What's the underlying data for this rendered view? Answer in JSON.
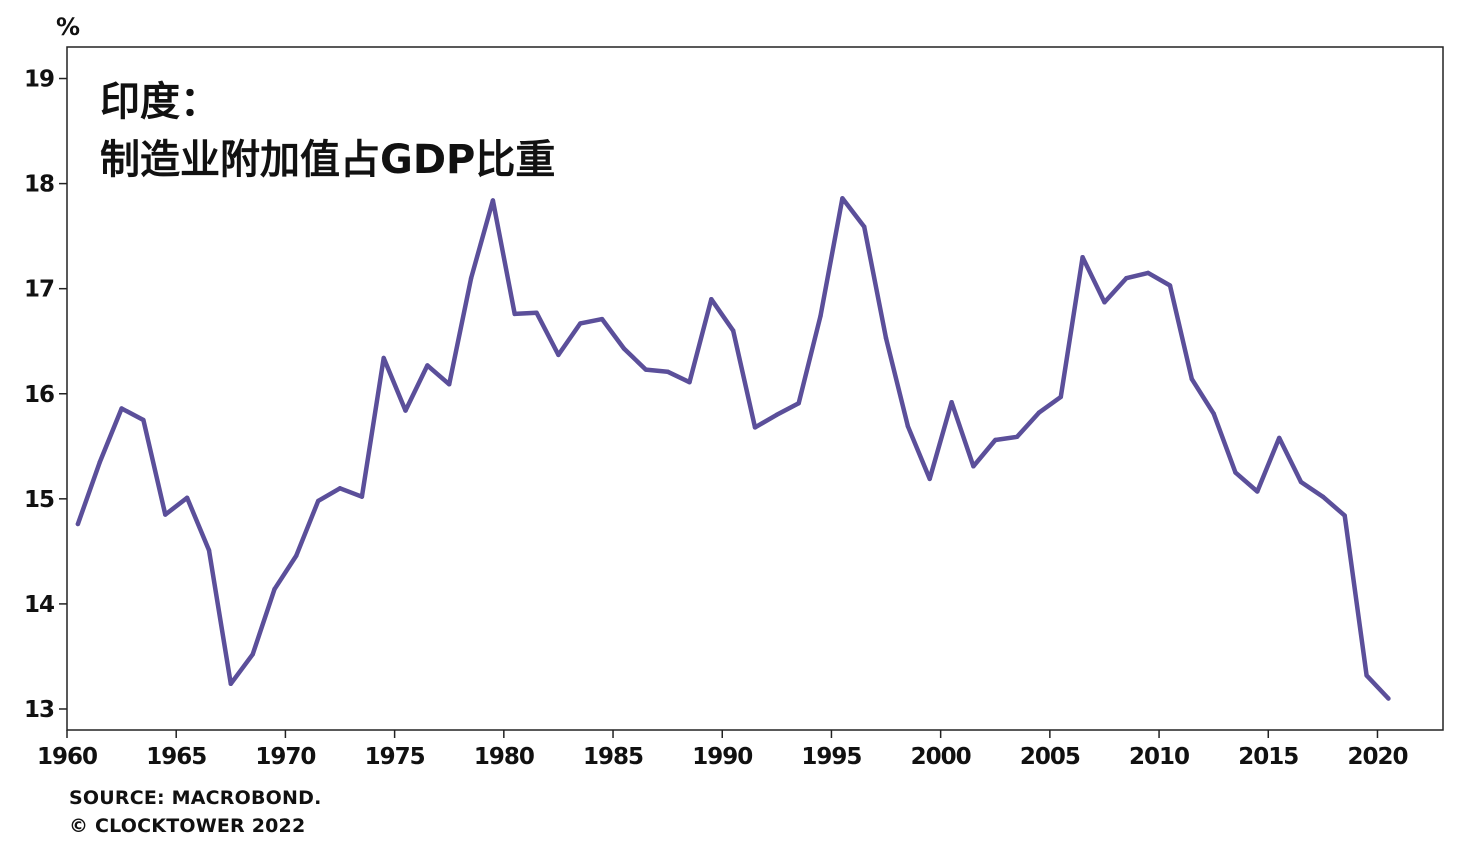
{
  "chart_data": {
    "type": "line",
    "title_lines": [
      "印度：",
      "制造业附加值占GDP比重"
    ],
    "ylabel": "%",
    "xlabel": "",
    "xlim": [
      1960,
      2023
    ],
    "ylim": [
      12.8,
      19.3
    ],
    "x_ticks": [
      1960,
      1965,
      1970,
      1975,
      1980,
      1985,
      1990,
      1995,
      2000,
      2005,
      2010,
      2015,
      2020
    ],
    "x_tick_labels": [
      "1960",
      "1965",
      "1970",
      "1975",
      "1980",
      "1985",
      "1990",
      "1995",
      "2000",
      "2005",
      "2010",
      "2015",
      "2020"
    ],
    "y_ticks": [
      13,
      14,
      15,
      16,
      17,
      18,
      19
    ],
    "y_tick_labels": [
      "13",
      "14",
      "15",
      "16",
      "17",
      "18",
      "19"
    ],
    "grid": false,
    "series": [
      {
        "name": "制造业附加值占GDP比重",
        "color": "#5b4f9a",
        "x": [
          1960.5,
          1961.5,
          1962.5,
          1963.5,
          1964.5,
          1965.5,
          1966.5,
          1967.5,
          1968.5,
          1969.5,
          1970.5,
          1971.5,
          1972.5,
          1973.5,
          1974.5,
          1975.5,
          1976.5,
          1977.5,
          1978.5,
          1979.5,
          1980.5,
          1981.5,
          1982.5,
          1983.5,
          1984.5,
          1985.5,
          1986.5,
          1987.5,
          1988.5,
          1989.5,
          1990.5,
          1991.5,
          1992.5,
          1993.5,
          1994.5,
          1995.5,
          1996.5,
          1997.5,
          1998.5,
          1999.5,
          2000.5,
          2001.5,
          2002.5,
          2003.5,
          2004.5,
          2005.5,
          2006.5,
          2007.5,
          2008.5,
          2009.5,
          2010.5,
          2011.5,
          2012.5,
          2013.5,
          2014.5,
          2015.5,
          2016.5,
          2017.5,
          2018.5,
          2019.5,
          2020.5
        ],
        "values": [
          14.76,
          15.35,
          15.86,
          15.75,
          14.85,
          15.01,
          14.51,
          13.24,
          13.52,
          14.14,
          14.46,
          14.98,
          15.1,
          15.02,
          16.34,
          15.84,
          16.27,
          16.09,
          17.1,
          17.84,
          16.76,
          16.77,
          16.37,
          16.67,
          16.71,
          16.43,
          16.23,
          16.21,
          16.11,
          16.9,
          16.6,
          15.68,
          15.8,
          15.91,
          16.74,
          17.86,
          17.59,
          16.53,
          15.69,
          15.19,
          15.92,
          15.31,
          15.56,
          15.59,
          15.82,
          15.97,
          17.3,
          16.87,
          17.1,
          17.15,
          17.03,
          16.14,
          15.81,
          15.25,
          15.07,
          15.58,
          15.16,
          15.02,
          14.84,
          13.32,
          13.1
        ]
      }
    ]
  },
  "footer": {
    "source": "SOURCE: MACROBOND.",
    "copyright": "© CLOCKTOWER 2022"
  }
}
